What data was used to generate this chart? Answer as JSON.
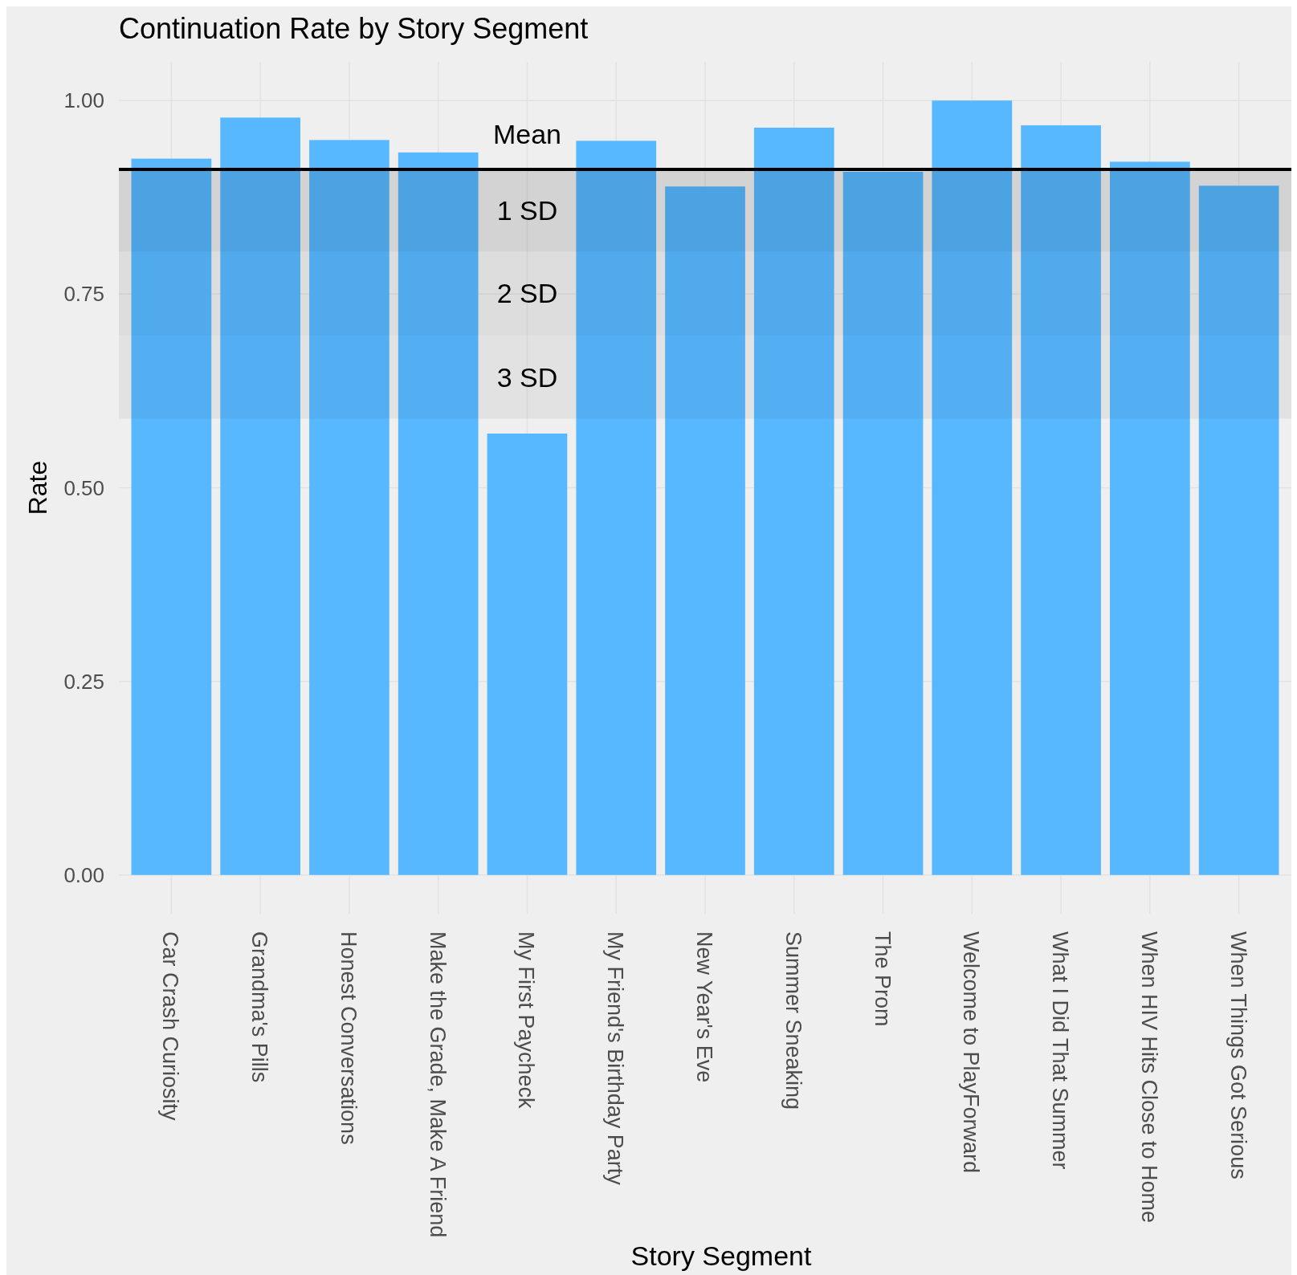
{
  "chart_data": {
    "type": "bar",
    "title": "Continuation Rate by Story Segment",
    "xlabel": "Story Segment",
    "ylabel": "Rate",
    "categories": [
      "Car Crash Curiosity",
      "Grandma's Pills",
      "Honest Conversations",
      "Make the Grade, Make A Friend",
      "My First Paycheck",
      "My Friend's Birthday Party",
      "New Year's Eve",
      "Summer Sneaking",
      "The Prom",
      "Welcome to PlayForward",
      "What I Did That Summer",
      "When HIV Hits Close to Home",
      "When Things Got Serious"
    ],
    "values": [
      0.925,
      0.978,
      0.949,
      0.933,
      0.57,
      0.948,
      0.889,
      0.965,
      0.908,
      1.0,
      0.968,
      0.921,
      0.89
    ],
    "color": "#57b8ff",
    "ylim": [
      -0.05,
      1.05
    ],
    "yticks": [
      {
        "value": 0,
        "label": "0.00"
      },
      {
        "value": 0.25,
        "label": "0.25"
      },
      {
        "value": 0.5,
        "label": "0.50"
      },
      {
        "value": 0.75,
        "label": "0.75"
      },
      {
        "value": 1,
        "label": "1.00"
      }
    ],
    "grid": true,
    "ref_lines": [
      {
        "axis": "y",
        "value": 0.911,
        "label": "Mean",
        "color": "#000000"
      }
    ],
    "bands": [
      {
        "axis": "y",
        "from": 0.805,
        "to": 0.911,
        "label": "1 SD",
        "color": "#c8c8c8"
      },
      {
        "axis": "y",
        "from": 0.697,
        "to": 0.805,
        "label": "2 SD",
        "color": "#dcdcdc"
      },
      {
        "axis": "y",
        "from": 0.589,
        "to": 0.697,
        "label": "3 SD",
        "color": "#e8e8e8"
      }
    ]
  }
}
